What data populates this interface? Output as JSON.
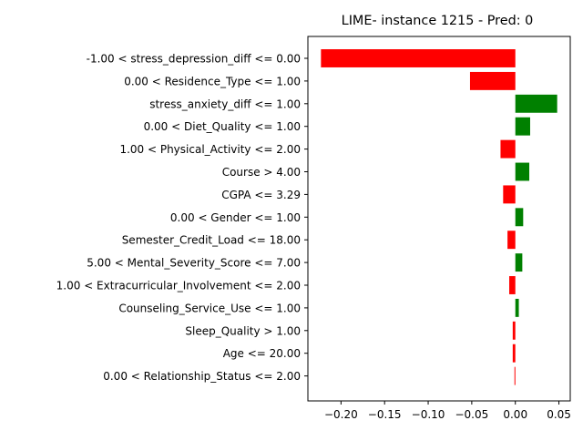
{
  "chart_data": {
    "type": "bar",
    "orientation": "horizontal",
    "title": "LIME- instance 1215 - Pred: 0",
    "xlabel": "",
    "ylabel": "",
    "xlim": [
      -0.238,
      0.063
    ],
    "xticks": [
      -0.2,
      -0.15,
      -0.1,
      -0.05,
      0.0,
      0.05
    ],
    "xtick_labels": [
      "−0.20",
      "−0.15",
      "−0.10",
      "−0.05",
      "0.00",
      "0.05"
    ],
    "grid": false,
    "colors": {
      "positive": "#008000",
      "negative": "#ff0000"
    },
    "categories": [
      "-1.00 < stress_depression_diff <= 0.00",
      "0.00 < Residence_Type <= 1.00",
      "stress_anxiety_diff <= 1.00",
      "0.00 < Diet_Quality <= 1.00",
      "1.00 < Physical_Activity <= 2.00",
      "Course > 4.00",
      "CGPA <= 3.29",
      "0.00 < Gender <= 1.00",
      "Semester_Credit_Load <= 18.00",
      "5.00 < Mental_Severity_Score <= 7.00",
      "1.00 < Extracurricular_Involvement <= 2.00",
      "Counseling_Service_Use <= 1.00",
      "Sleep_Quality > 1.00",
      "Age <= 20.00",
      "0.00 < Relationship_Status <= 2.00"
    ],
    "values": [
      -0.223,
      -0.052,
      0.048,
      0.017,
      -0.017,
      0.016,
      -0.014,
      0.009,
      -0.009,
      0.008,
      -0.007,
      0.004,
      -0.003,
      -0.003,
      -0.001
    ]
  }
}
